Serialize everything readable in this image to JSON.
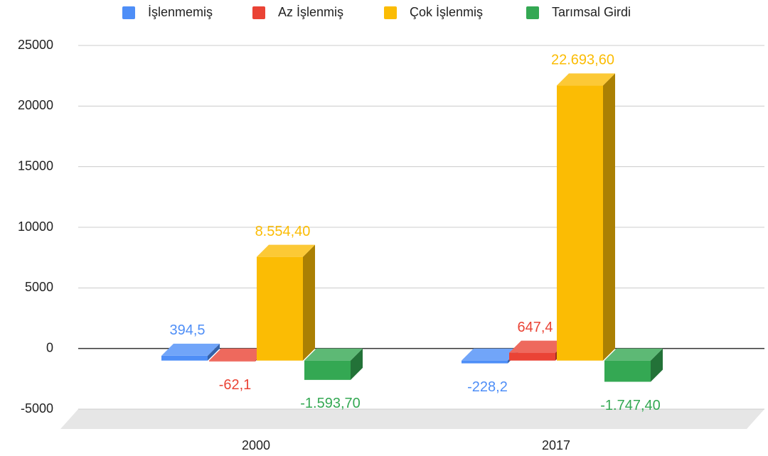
{
  "chart_data": {
    "type": "bar",
    "categories": [
      "2000",
      "2017"
    ],
    "series": [
      {
        "name": "İşlenmemiş",
        "color": "#4e8ef7",
        "values": [
          394.5,
          -228.2
        ],
        "value_labels": [
          "394,5",
          "-228,2"
        ]
      },
      {
        "name": "Az İşlenmiş",
        "color": "#ea4335",
        "values": [
          -62.1,
          647.4
        ],
        "value_labels": [
          "-62,1",
          "647,4"
        ]
      },
      {
        "name": "Çok İşlenmiş",
        "color": "#fbbc04",
        "values": [
          8554.4,
          22693.6
        ],
        "value_labels": [
          "8.554,40",
          "22.693,60"
        ]
      },
      {
        "name": "Tarımsal Girdi",
        "color": "#34a853",
        "values": [
          -1593.7,
          -1747.4
        ],
        "value_labels": [
          "-1.593,70",
          "-1.747,40"
        ]
      }
    ],
    "ylim": [
      -5000,
      25000
    ],
    "yticks": [
      -5000,
      0,
      5000,
      10000,
      15000,
      20000,
      25000
    ],
    "grid": true,
    "legend": "top"
  }
}
